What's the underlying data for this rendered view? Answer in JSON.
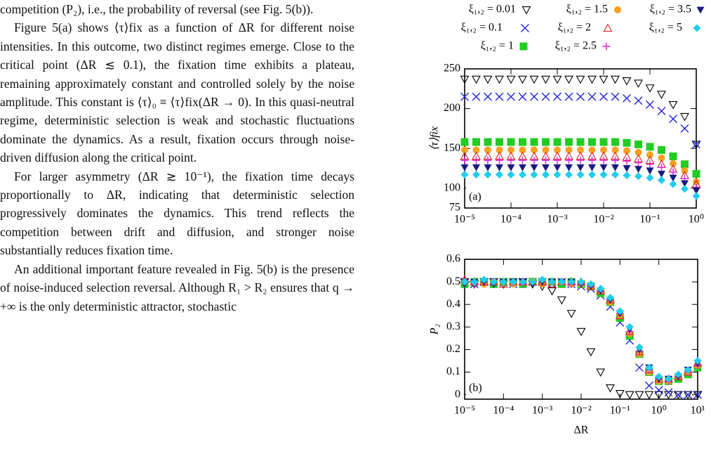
{
  "paragraphs": [
    "competition (P₂), i.e., the probability of reversal (see Fig. 5(b)).",
    "Figure 5(a) shows ⟨τ⟩fix as a function of ΔR for different noise intensities. In this outcome, two distinct regimes emerge. Close to the critical point (ΔR ≲ 0.1), the fixation time exhibits a plateau, remaining approximately constant and controlled solely by the noise amplitude. This constant is ⟨τ⟩₀ ≡ ⟨τ⟩fix(ΔR → 0). In this quasi-neutral regime, deterministic selection is weak and stochastic fluctuations dominate the dynamics. As a result, fixation occurs through noise-driven diffusion along the critical point.",
    "For larger asymmetry (ΔR ≳ 10⁻¹), the fixation time decays proportionally to ΔR, indicating that deterministic selection progressively dominates the dynamics. This trend reflects the competition between drift and diffusion, and stronger noise substantially reduces fixation time.",
    "An additional important feature revealed in Fig. 5(b) is the presence of noise-induced selection reversal. Although R₁ > R₂ ensures that q → +∞ is the only deterministic attractor, stochastic"
  ],
  "chart_data": [
    {
      "type": "scatter",
      "panel_label": "(a)",
      "ylabel": "⟨τ⟩fix",
      "log_x": true,
      "x": [
        1e-05,
        1.778e-05,
        3.162e-05,
        5.623e-05,
        0.0001,
        0.0001778,
        0.0003162,
        0.0005623,
        0.001,
        0.001778,
        0.003162,
        0.005623,
        0.01,
        0.01778,
        0.03162,
        0.05623,
        0.1,
        0.1778,
        0.3162,
        0.5623,
        1
      ],
      "xlim": [
        1e-05,
        1
      ],
      "xticks": [
        {
          "value": 1e-05,
          "label": "10⁻⁵"
        },
        {
          "value": 0.0001,
          "label": "10⁻⁴"
        },
        {
          "value": 0.001,
          "label": "10⁻³"
        },
        {
          "value": 0.01,
          "label": "10⁻²"
        },
        {
          "value": 0.1,
          "label": "10⁻¹"
        },
        {
          "value": 1,
          "label": "10⁰"
        }
      ],
      "ylim": [
        75,
        250
      ],
      "yticks": [
        75,
        100,
        150,
        200,
        250
      ],
      "series": [
        {
          "name": "ξ₁,₂ = 0.01",
          "color": "#000000",
          "marker": "triangle-down-open",
          "values": [
            237,
            237,
            237,
            237,
            237,
            237,
            237,
            237,
            237,
            237,
            237,
            237,
            237,
            237,
            235,
            232,
            226,
            218,
            205,
            190,
            155
          ]
        },
        {
          "name": "ξ₁,₂ = 0.1",
          "color": "#2424d8",
          "marker": "x",
          "values": [
            215,
            215,
            215,
            215,
            215,
            215,
            215,
            215,
            215,
            215,
            215,
            215,
            215,
            215,
            213,
            210,
            205,
            197,
            187,
            175,
            155
          ]
        },
        {
          "name": "ξ₁,₂ = 1",
          "color": "#22cc22",
          "marker": "square",
          "values": [
            158,
            158,
            158,
            158,
            158,
            158,
            158,
            158,
            158,
            158,
            158,
            158,
            158,
            158,
            157,
            155,
            152,
            148,
            140,
            130,
            118
          ]
        },
        {
          "name": "ξ₁,₂ = 1.5",
          "color": "#f5a020",
          "marker": "circle",
          "values": [
            148,
            148,
            148,
            148,
            148,
            148,
            148,
            148,
            148,
            148,
            148,
            148,
            148,
            148,
            147,
            145,
            142,
            138,
            131,
            122,
            108
          ]
        },
        {
          "name": "ξ₁,₂ = 2",
          "color": "#e02020",
          "marker": "triangle-up-open",
          "values": [
            140,
            140,
            140,
            140,
            140,
            140,
            140,
            140,
            140,
            140,
            140,
            140,
            140,
            140,
            139,
            137,
            135,
            130,
            124,
            116,
            105
          ]
        },
        {
          "name": "ξ₁,₂ = 2.5",
          "color": "#e020e0",
          "marker": "plus",
          "values": [
            135,
            135,
            135,
            135,
            135,
            135,
            135,
            135,
            135,
            135,
            135,
            135,
            135,
            135,
            134,
            132,
            130,
            126,
            120,
            112,
            100
          ]
        },
        {
          "name": "ξ₁,₂ = 3.5",
          "color": "#1a1a80",
          "marker": "triangle-down",
          "values": [
            126,
            126,
            126,
            126,
            126,
            126,
            126,
            126,
            126,
            126,
            126,
            126,
            126,
            126,
            125,
            124,
            122,
            118,
            113,
            106,
            97
          ]
        },
        {
          "name": "ξ₁,₂ = 5",
          "color": "#22ccee",
          "marker": "diamond",
          "values": [
            117,
            117,
            117,
            117,
            117,
            117,
            117,
            117,
            117,
            117,
            117,
            117,
            117,
            117,
            116,
            115,
            113,
            110,
            105,
            99,
            90
          ]
        }
      ]
    },
    {
      "type": "scatter",
      "panel_label": "(b)",
      "ylabel": "P₂",
      "xlabel": "ΔR",
      "log_x": true,
      "x": [
        1e-05,
        1.778e-05,
        3.162e-05,
        5.623e-05,
        0.0001,
        0.0001778,
        0.0003162,
        0.0005623,
        0.001,
        0.001778,
        0.003162,
        0.005623,
        0.01,
        0.01778,
        0.03162,
        0.05623,
        0.1,
        0.1778,
        0.3162,
        0.5623,
        1,
        1.778,
        3.162,
        5.623,
        10
      ],
      "xlim": [
        1e-05,
        10
      ],
      "xticks": [
        {
          "value": 1e-05,
          "label": "10⁻⁵"
        },
        {
          "value": 0.0001,
          "label": "10⁻⁴"
        },
        {
          "value": 0.001,
          "label": "10⁻³"
        },
        {
          "value": 0.01,
          "label": "10⁻²"
        },
        {
          "value": 0.1,
          "label": "10⁻¹"
        },
        {
          "value": 1,
          "label": "10⁰"
        },
        {
          "value": 10,
          "label": "10¹"
        }
      ],
      "ylim": [
        -0.02,
        0.6
      ],
      "yticks": [
        0,
        0.1,
        0.2,
        0.3,
        0.4,
        0.5,
        0.6
      ],
      "series": [
        {
          "color": "#000000",
          "marker": "triangle-down-open",
          "values": [
            0.5,
            0.49,
            0.5,
            0.5,
            0.49,
            0.5,
            0.5,
            0.49,
            0.48,
            0.46,
            0.42,
            0.36,
            0.28,
            0.19,
            0.1,
            0.03,
            0.005,
            0,
            0,
            0,
            0,
            0,
            0,
            0,
            0
          ]
        },
        {
          "color": "#2424d8",
          "marker": "x",
          "values": [
            0.5,
            0.49,
            0.5,
            0.5,
            0.5,
            0.49,
            0.5,
            0.5,
            0.5,
            0.49,
            0.5,
            0.49,
            0.48,
            0.47,
            0.44,
            0.39,
            0.32,
            0.24,
            0.12,
            0.04,
            0.02,
            0.01,
            0,
            0,
            0
          ]
        },
        {
          "color": "#22cc22",
          "marker": "square",
          "values": [
            0.49,
            0.5,
            0.5,
            0.49,
            0.5,
            0.5,
            0.49,
            0.5,
            0.5,
            0.5,
            0.49,
            0.5,
            0.49,
            0.48,
            0.45,
            0.41,
            0.34,
            0.26,
            0.18,
            0.1,
            0.06,
            0.06,
            0.07,
            0.09,
            0.12
          ]
        },
        {
          "color": "#f5a020",
          "marker": "circle",
          "values": [
            0.5,
            0.5,
            0.49,
            0.5,
            0.5,
            0.49,
            0.5,
            0.5,
            0.49,
            0.5,
            0.5,
            0.49,
            0.49,
            0.48,
            0.46,
            0.41,
            0.35,
            0.27,
            0.18,
            0.1,
            0.06,
            0.06,
            0.08,
            0.1,
            0.13
          ]
        },
        {
          "color": "#e02020",
          "marker": "triangle-up-open",
          "values": [
            0.51,
            0.5,
            0.5,
            0.5,
            0.49,
            0.5,
            0.5,
            0.5,
            0.5,
            0.49,
            0.5,
            0.5,
            0.5,
            0.48,
            0.46,
            0.42,
            0.35,
            0.28,
            0.19,
            0.11,
            0.07,
            0.07,
            0.08,
            0.1,
            0.14
          ]
        },
        {
          "color": "#e020e0",
          "marker": "plus",
          "values": [
            0.5,
            0.49,
            0.5,
            0.5,
            0.5,
            0.5,
            0.49,
            0.5,
            0.5,
            0.5,
            0.5,
            0.49,
            0.49,
            0.48,
            0.46,
            0.42,
            0.36,
            0.28,
            0.19,
            0.11,
            0.07,
            0.06,
            0.08,
            0.1,
            0.13
          ]
        },
        {
          "color": "#1a1a80",
          "marker": "triangle-down",
          "values": [
            0.49,
            0.5,
            0.5,
            0.49,
            0.5,
            0.5,
            0.5,
            0.49,
            0.5,
            0.5,
            0.5,
            0.5,
            0.49,
            0.48,
            0.46,
            0.42,
            0.36,
            0.29,
            0.2,
            0.12,
            0.07,
            0.07,
            0.08,
            0.11,
            0.14
          ]
        },
        {
          "color": "#22ccee",
          "marker": "diamond",
          "values": [
            0.5,
            0.5,
            0.51,
            0.5,
            0.5,
            0.5,
            0.5,
            0.5,
            0.51,
            0.5,
            0.5,
            0.5,
            0.5,
            0.49,
            0.47,
            0.43,
            0.37,
            0.3,
            0.21,
            0.12,
            0.08,
            0.07,
            0.09,
            0.11,
            0.15
          ]
        }
      ]
    }
  ]
}
